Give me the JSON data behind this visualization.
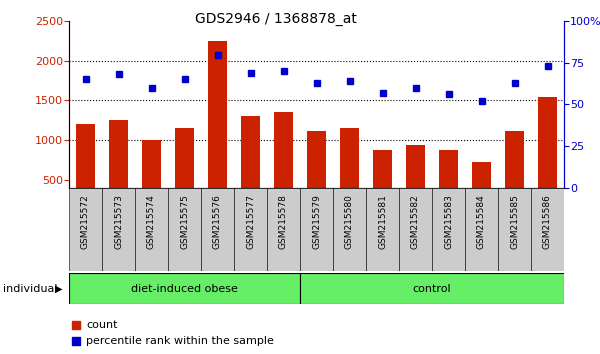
{
  "title": "GDS2946 / 1368878_at",
  "samples": [
    "GSM215572",
    "GSM215573",
    "GSM215574",
    "GSM215575",
    "GSM215576",
    "GSM215577",
    "GSM215578",
    "GSM215579",
    "GSM215580",
    "GSM215581",
    "GSM215582",
    "GSM215583",
    "GSM215584",
    "GSM215585",
    "GSM215586"
  ],
  "counts": [
    1200,
    1250,
    1000,
    1150,
    2250,
    1300,
    1360,
    1120,
    1150,
    870,
    940,
    870,
    720,
    1110,
    1550
  ],
  "percentiles": [
    65,
    68,
    60,
    65,
    80,
    69,
    70,
    63,
    64,
    57,
    60,
    56,
    52,
    63,
    73
  ],
  "bar_color": "#cc2200",
  "dot_color": "#0000cc",
  "ylim_left": [
    400,
    2500
  ],
  "ylim_right": [
    0,
    100
  ],
  "yticks_left": [
    500,
    1000,
    1500,
    2000,
    2500
  ],
  "yticks_right": [
    0,
    25,
    50,
    75,
    100
  ],
  "ytick_right_labels": [
    "0",
    "25",
    "50",
    "75",
    "100%"
  ],
  "group1_label": "diet-induced obese",
  "group1_count": 7,
  "group2_label": "control",
  "group2_count": 8,
  "group_bg_color": "#66ee66",
  "tick_area_color": "#cccccc",
  "individual_label": "individual",
  "legend_count_label": "count",
  "legend_pct_label": "percentile rank within the sample",
  "background_color": "#ffffff"
}
